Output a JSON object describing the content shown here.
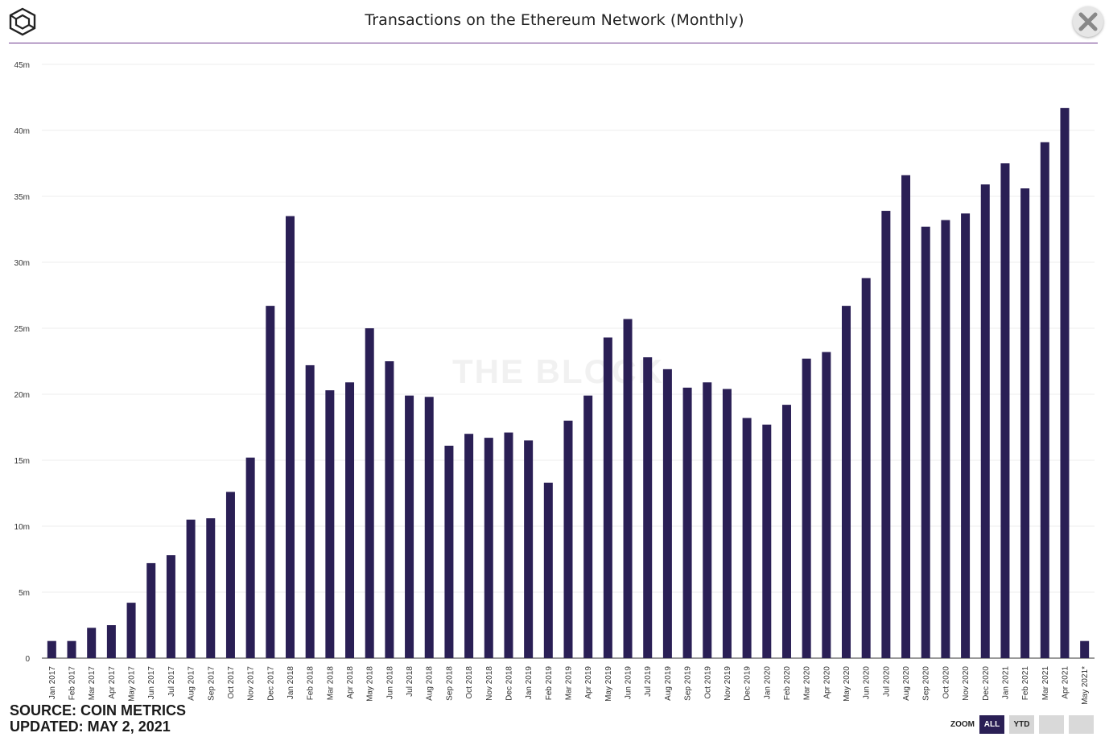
{
  "header": {
    "title": "Transactions on the Ethereum Network (Monthly)",
    "logo_icon": "the-block-cube-logo",
    "close_icon": "close-icon"
  },
  "watermark": "THE BLOCK",
  "footer": {
    "source": "SOURCE: COIN METRICS",
    "updated": "UPDATED: MAY 2, 2021"
  },
  "zoom": {
    "label": "ZOOM",
    "buttons": [
      "ALL",
      "YTD",
      "",
      ""
    ],
    "selected": "ALL"
  },
  "colors": {
    "bar": "#2a1f55",
    "accent_rule": "#6d3a8f",
    "grid": "#ececec"
  },
  "chart_data": {
    "type": "bar",
    "title": "Transactions on the Ethereum Network (Monthly)",
    "xlabel": "",
    "ylabel": "",
    "ylim": [
      0,
      45000000
    ],
    "yticks": [
      0,
      5000000,
      10000000,
      15000000,
      20000000,
      25000000,
      30000000,
      35000000,
      40000000,
      45000000
    ],
    "ytick_labels": [
      "0",
      "5m",
      "10m",
      "15m",
      "20m",
      "25m",
      "30m",
      "35m",
      "40m",
      "45m"
    ],
    "grid": true,
    "categories": [
      "Jan 2017",
      "Feb 2017",
      "Mar 2017",
      "Apr 2017",
      "May 2017",
      "Jun 2017",
      "Jul 2017",
      "Aug 2017",
      "Sep 2017",
      "Oct 2017",
      "Nov 2017",
      "Dec 2017",
      "Jan 2018",
      "Feb 2018",
      "Mar 2018",
      "Apr 2018",
      "May 2018",
      "Jun 2018",
      "Jul 2018",
      "Aug 2018",
      "Sep 2018",
      "Oct 2018",
      "Nov 2018",
      "Dec 2018",
      "Jan 2019",
      "Feb 2019",
      "Mar 2019",
      "Apr 2019",
      "May 2019",
      "Jun 2019",
      "Jul 2019",
      "Aug 2019",
      "Sep 2019",
      "Oct 2019",
      "Nov 2019",
      "Dec 2019",
      "Jan 2020",
      "Feb 2020",
      "Mar 2020",
      "Apr 2020",
      "May 2020",
      "Jun 2020",
      "Jul 2020",
      "Aug 2020",
      "Sep 2020",
      "Oct 2020",
      "Nov 2020",
      "Dec 2020",
      "Jan 2021",
      "Feb 2021",
      "Mar 2021",
      "Apr 2021",
      "May 2021*"
    ],
    "values": [
      1300000,
      1300000,
      2300000,
      2500000,
      4200000,
      7200000,
      7800000,
      10500000,
      10600000,
      12600000,
      15200000,
      26700000,
      33500000,
      22200000,
      20300000,
      20900000,
      25000000,
      22500000,
      19900000,
      19800000,
      16100000,
      17000000,
      16700000,
      17100000,
      16500000,
      13300000,
      18000000,
      19900000,
      24300000,
      25700000,
      22800000,
      21900000,
      20500000,
      20900000,
      20400000,
      18200000,
      17700000,
      19200000,
      22700000,
      23200000,
      26700000,
      28800000,
      33900000,
      36600000,
      32700000,
      33200000,
      33700000,
      35900000,
      37500000,
      35600000,
      39100000,
      41700000,
      1300000
    ]
  }
}
